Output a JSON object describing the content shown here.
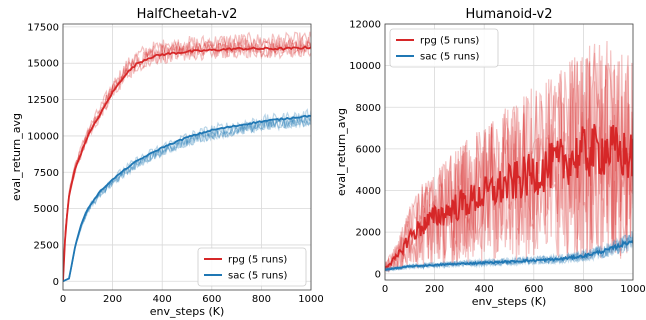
{
  "chart_data": [
    {
      "type": "line",
      "title": "HalfCheetah-v2",
      "xlabel": "env_steps (K)",
      "ylabel": "eval_return_avg",
      "xlim": [
        0,
        1000
      ],
      "ylim": [
        -600,
        17700
      ],
      "xticks": [
        0,
        200,
        400,
        600,
        800,
        1000
      ],
      "yticks": [
        0,
        2500,
        5000,
        7500,
        10000,
        12500,
        15000,
        17500
      ],
      "grid": true,
      "legend_position": "lower-right",
      "series": [
        {
          "name": "rpg (5 runs)",
          "color": "#d62728",
          "x": [
            0,
            10,
            25,
            50,
            100,
            150,
            200,
            250,
            300,
            350,
            400,
            450,
            500,
            600,
            700,
            800,
            900,
            1000
          ],
          "values": [
            0,
            3500,
            6000,
            7800,
            10000,
            11500,
            13000,
            14200,
            15000,
            15400,
            15600,
            15700,
            15800,
            15900,
            16000,
            16000,
            16000,
            16100
          ]
        },
        {
          "name": "sac (5 runs)",
          "color": "#1f77b4",
          "x": [
            0,
            25,
            50,
            75,
            100,
            150,
            200,
            250,
            300,
            400,
            500,
            600,
            700,
            800,
            900,
            1000
          ],
          "values": [
            0,
            200,
            2500,
            4000,
            5000,
            6200,
            7000,
            7700,
            8300,
            9200,
            9900,
            10400,
            10700,
            11000,
            11200,
            11400
          ]
        }
      ]
    },
    {
      "type": "line",
      "title": "Humanoid-v2",
      "xlabel": "env_steps (K)",
      "ylabel": "eval_return_avg",
      "xlim": [
        0,
        1000
      ],
      "ylim": [
        -300,
        12000
      ],
      "xticks": [
        0,
        200,
        400,
        600,
        800,
        1000
      ],
      "yticks": [
        0,
        2000,
        4000,
        6000,
        8000,
        10000,
        12000
      ],
      "grid": true,
      "legend_position": "upper-left",
      "series": [
        {
          "name": "rpg (5 runs)",
          "color": "#d62728",
          "x": [
            0,
            50,
            100,
            150,
            200,
            300,
            400,
            500,
            600,
            700,
            800,
            900,
            1000
          ],
          "values": [
            300,
            800,
            1800,
            2300,
            2700,
            3300,
            3800,
            4300,
            4800,
            5300,
            5800,
            6000,
            5500
          ]
        },
        {
          "name": "sac (5 runs)",
          "color": "#1f77b4",
          "x": [
            0,
            100,
            200,
            300,
            400,
            500,
            600,
            700,
            800,
            900,
            1000
          ],
          "values": [
            200,
            350,
            420,
            480,
            530,
            580,
            640,
            700,
            850,
            1150,
            1600
          ]
        }
      ]
    }
  ]
}
